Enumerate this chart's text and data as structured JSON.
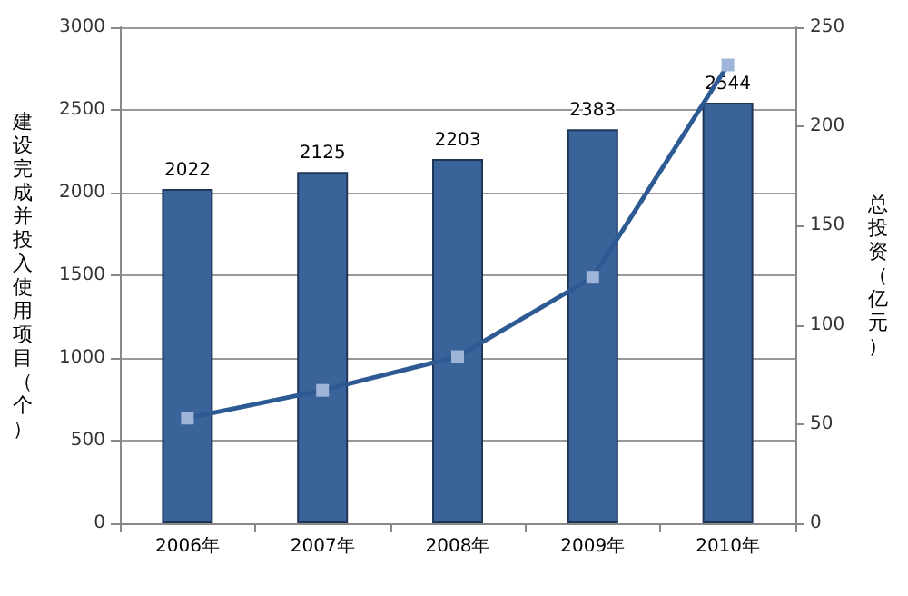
{
  "chart_data": {
    "type": "bar",
    "categories": [
      "2006年",
      "2007年",
      "2008年",
      "2009年",
      "2010年"
    ],
    "ylabel": "建设完成并投入使用项目（个）",
    "y2label": "总投资（亿元）",
    "series": [
      {
        "color": "#3a6399",
        "values": [
          2022,
          2125,
          2203,
          2383,
          2544
        ],
        "data_labels": true
      },
      {
        "type": "line",
        "axis": "y2",
        "color": "#2e5a94",
        "values": [
          53,
          67,
          84,
          124,
          231
        ],
        "marker": "square"
      }
    ],
    "ylim": [
      0,
      3000
    ],
    "yticks": [
      0,
      500,
      1000,
      1500,
      2000,
      2500,
      3000
    ],
    "y2lim": [
      0,
      250
    ],
    "y2ticks": [
      0,
      50,
      100,
      150,
      200,
      250
    ],
    "grid": "y"
  }
}
